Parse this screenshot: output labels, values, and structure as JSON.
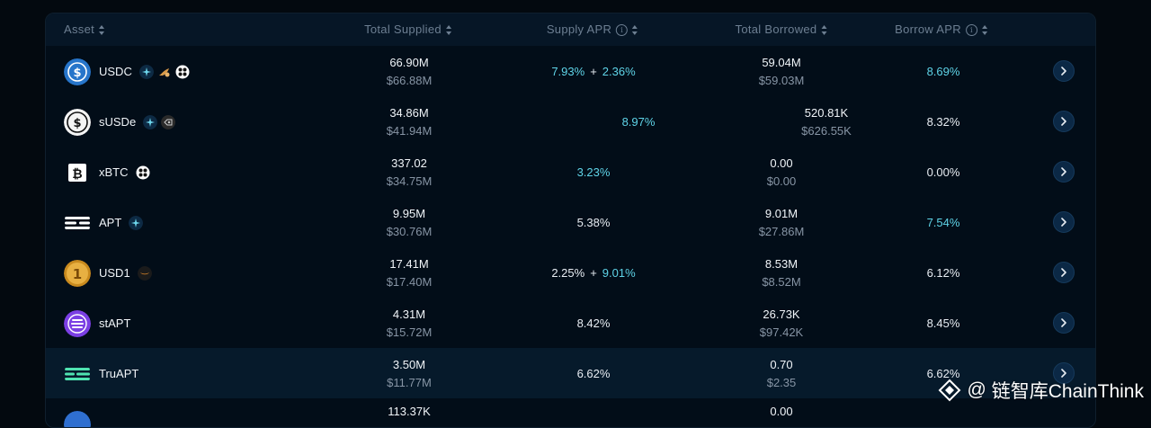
{
  "table": {
    "columns": {
      "asset": "Asset",
      "total_supplied": "Total Supplied",
      "supply_apr": "Supply APR",
      "total_borrowed": "Total Borrowed",
      "borrow_apr": "Borrow APR"
    },
    "rows": [
      {
        "symbol": "USDC",
        "supplied": "66.90M",
        "supplied_usd": "$66.88M",
        "supply_apr_base": "7.93%",
        "supply_apr_plus": "+",
        "supply_apr_bonus": "2.36%",
        "borrowed": "59.04M",
        "borrowed_usd": "$59.03M",
        "borrow_apr": "8.69%"
      },
      {
        "symbol": "sUSDe",
        "supplied": "34.86M",
        "supplied_usd": "$41.94M",
        "supply_apr": "8.97%",
        "borrowed": "520.81K",
        "borrowed_usd": "$626.55K",
        "borrow_apr": "8.32%"
      },
      {
        "symbol": "xBTC",
        "supplied": "337.02",
        "supplied_usd": "$34.75M",
        "supply_apr": "3.23%",
        "borrowed": "0.00",
        "borrowed_usd": "$0.00",
        "borrow_apr": "0.00%"
      },
      {
        "symbol": "APT",
        "supplied": "9.95M",
        "supplied_usd": "$30.76M",
        "supply_apr": "5.38%",
        "borrowed": "9.01M",
        "borrowed_usd": "$27.86M",
        "borrow_apr": "7.54%"
      },
      {
        "symbol": "USD1",
        "supplied": "17.41M",
        "supplied_usd": "$17.40M",
        "supply_apr_base": "2.25%",
        "supply_apr_plus": "+",
        "supply_apr_bonus": "9.01%",
        "borrowed": "8.53M",
        "borrowed_usd": "$8.52M",
        "borrow_apr": "6.12%"
      },
      {
        "symbol": "stAPT",
        "supplied": "4.31M",
        "supplied_usd": "$15.72M",
        "supply_apr": "8.42%",
        "borrowed": "26.73K",
        "borrowed_usd": "$97.42K",
        "borrow_apr": "8.45%"
      },
      {
        "symbol": "TruAPT",
        "supplied": "3.50M",
        "supplied_usd": "$11.77M",
        "supply_apr": "6.62%",
        "borrowed": "0.70",
        "borrowed_usd": "$2.35",
        "borrow_apr": "6.62%"
      },
      {
        "supplied": "113.37K",
        "borrowed": "0.00"
      }
    ]
  },
  "watermark": {
    "at": "@",
    "text": "链智库ChainThink"
  },
  "icons": {
    "sort": "sort-icon",
    "info": "info-icon",
    "details": "chevron-right-icon"
  },
  "colors": {
    "accent_cyan": "#5fd4e8",
    "background": "#03090f",
    "panel": "#020d18",
    "header": "#061626",
    "highlight_row": "#061a2b",
    "muted_text": "#8795a5"
  }
}
